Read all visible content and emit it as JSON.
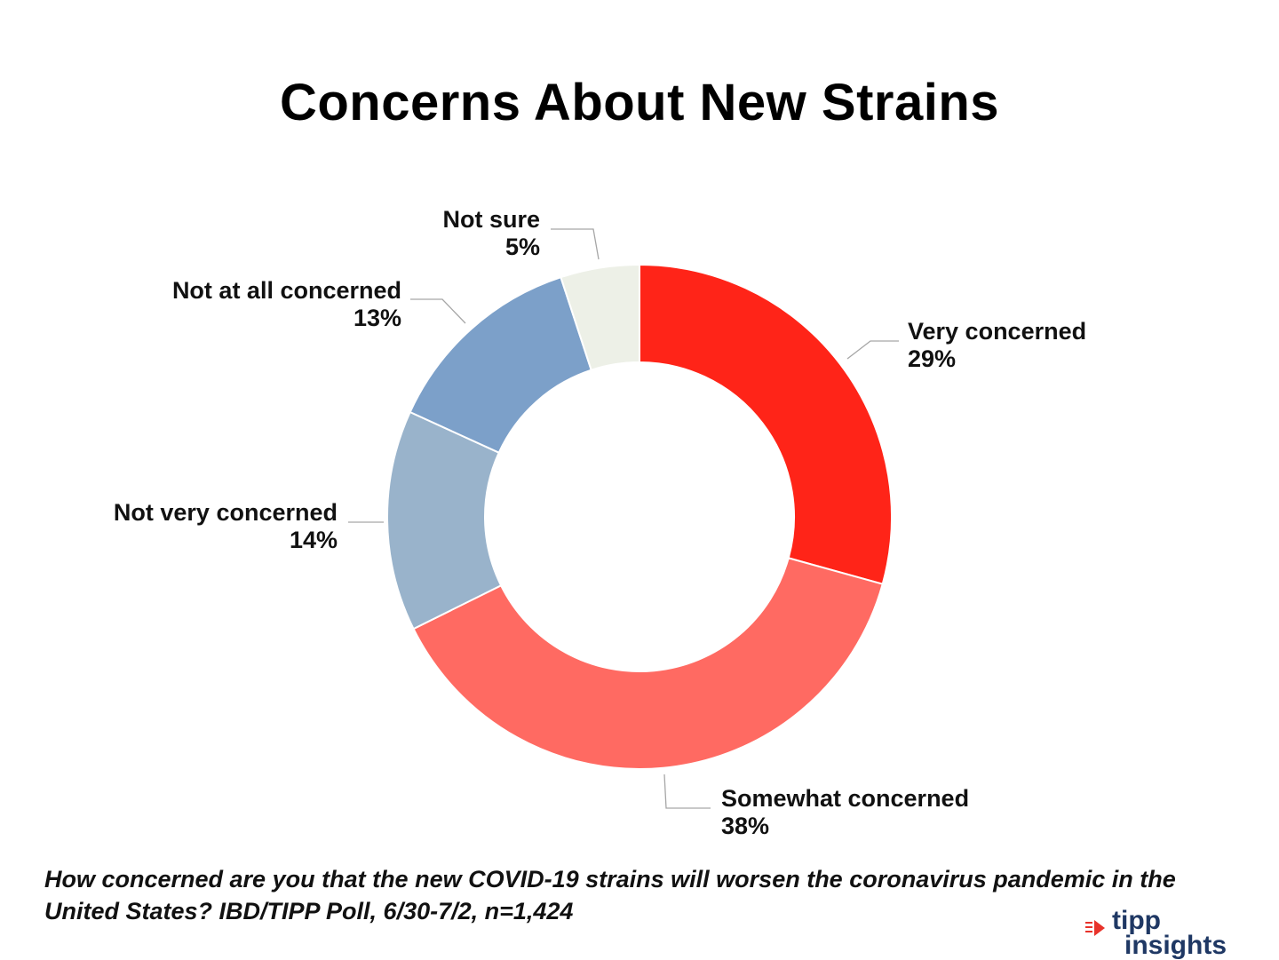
{
  "chart_data": {
    "type": "pie",
    "variant": "donut",
    "title": "Concerns About New Strains",
    "slices": [
      {
        "label": "Very concerned",
        "value": 29,
        "value_label": "29%",
        "color": "#ff2418"
      },
      {
        "label": "Somewhat concerned",
        "value": 38,
        "value_label": "38%",
        "color": "#ff6a62"
      },
      {
        "label": "Not very concerned",
        "value": 14,
        "value_label": "14%",
        "color": "#99b3cb"
      },
      {
        "label": "Not at all concerned",
        "value": 13,
        "value_label": "13%",
        "color": "#7ca0c9"
      },
      {
        "label": "Not sure",
        "value": 5,
        "value_label": "5%",
        "color": "#edf0e7"
      }
    ],
    "legend": "none",
    "labels": "outside with leader lines"
  },
  "question": "How concerned are you that the new COVID-19 strains will worsen the coronavirus pandemic in the United States?  IBD/TIPP Poll, 6/30-7/2, n=1,424",
  "logo": {
    "word1": "tipp",
    "word2": "insights",
    "accent_color": "#e8322a",
    "text_color": "#1f3864"
  }
}
